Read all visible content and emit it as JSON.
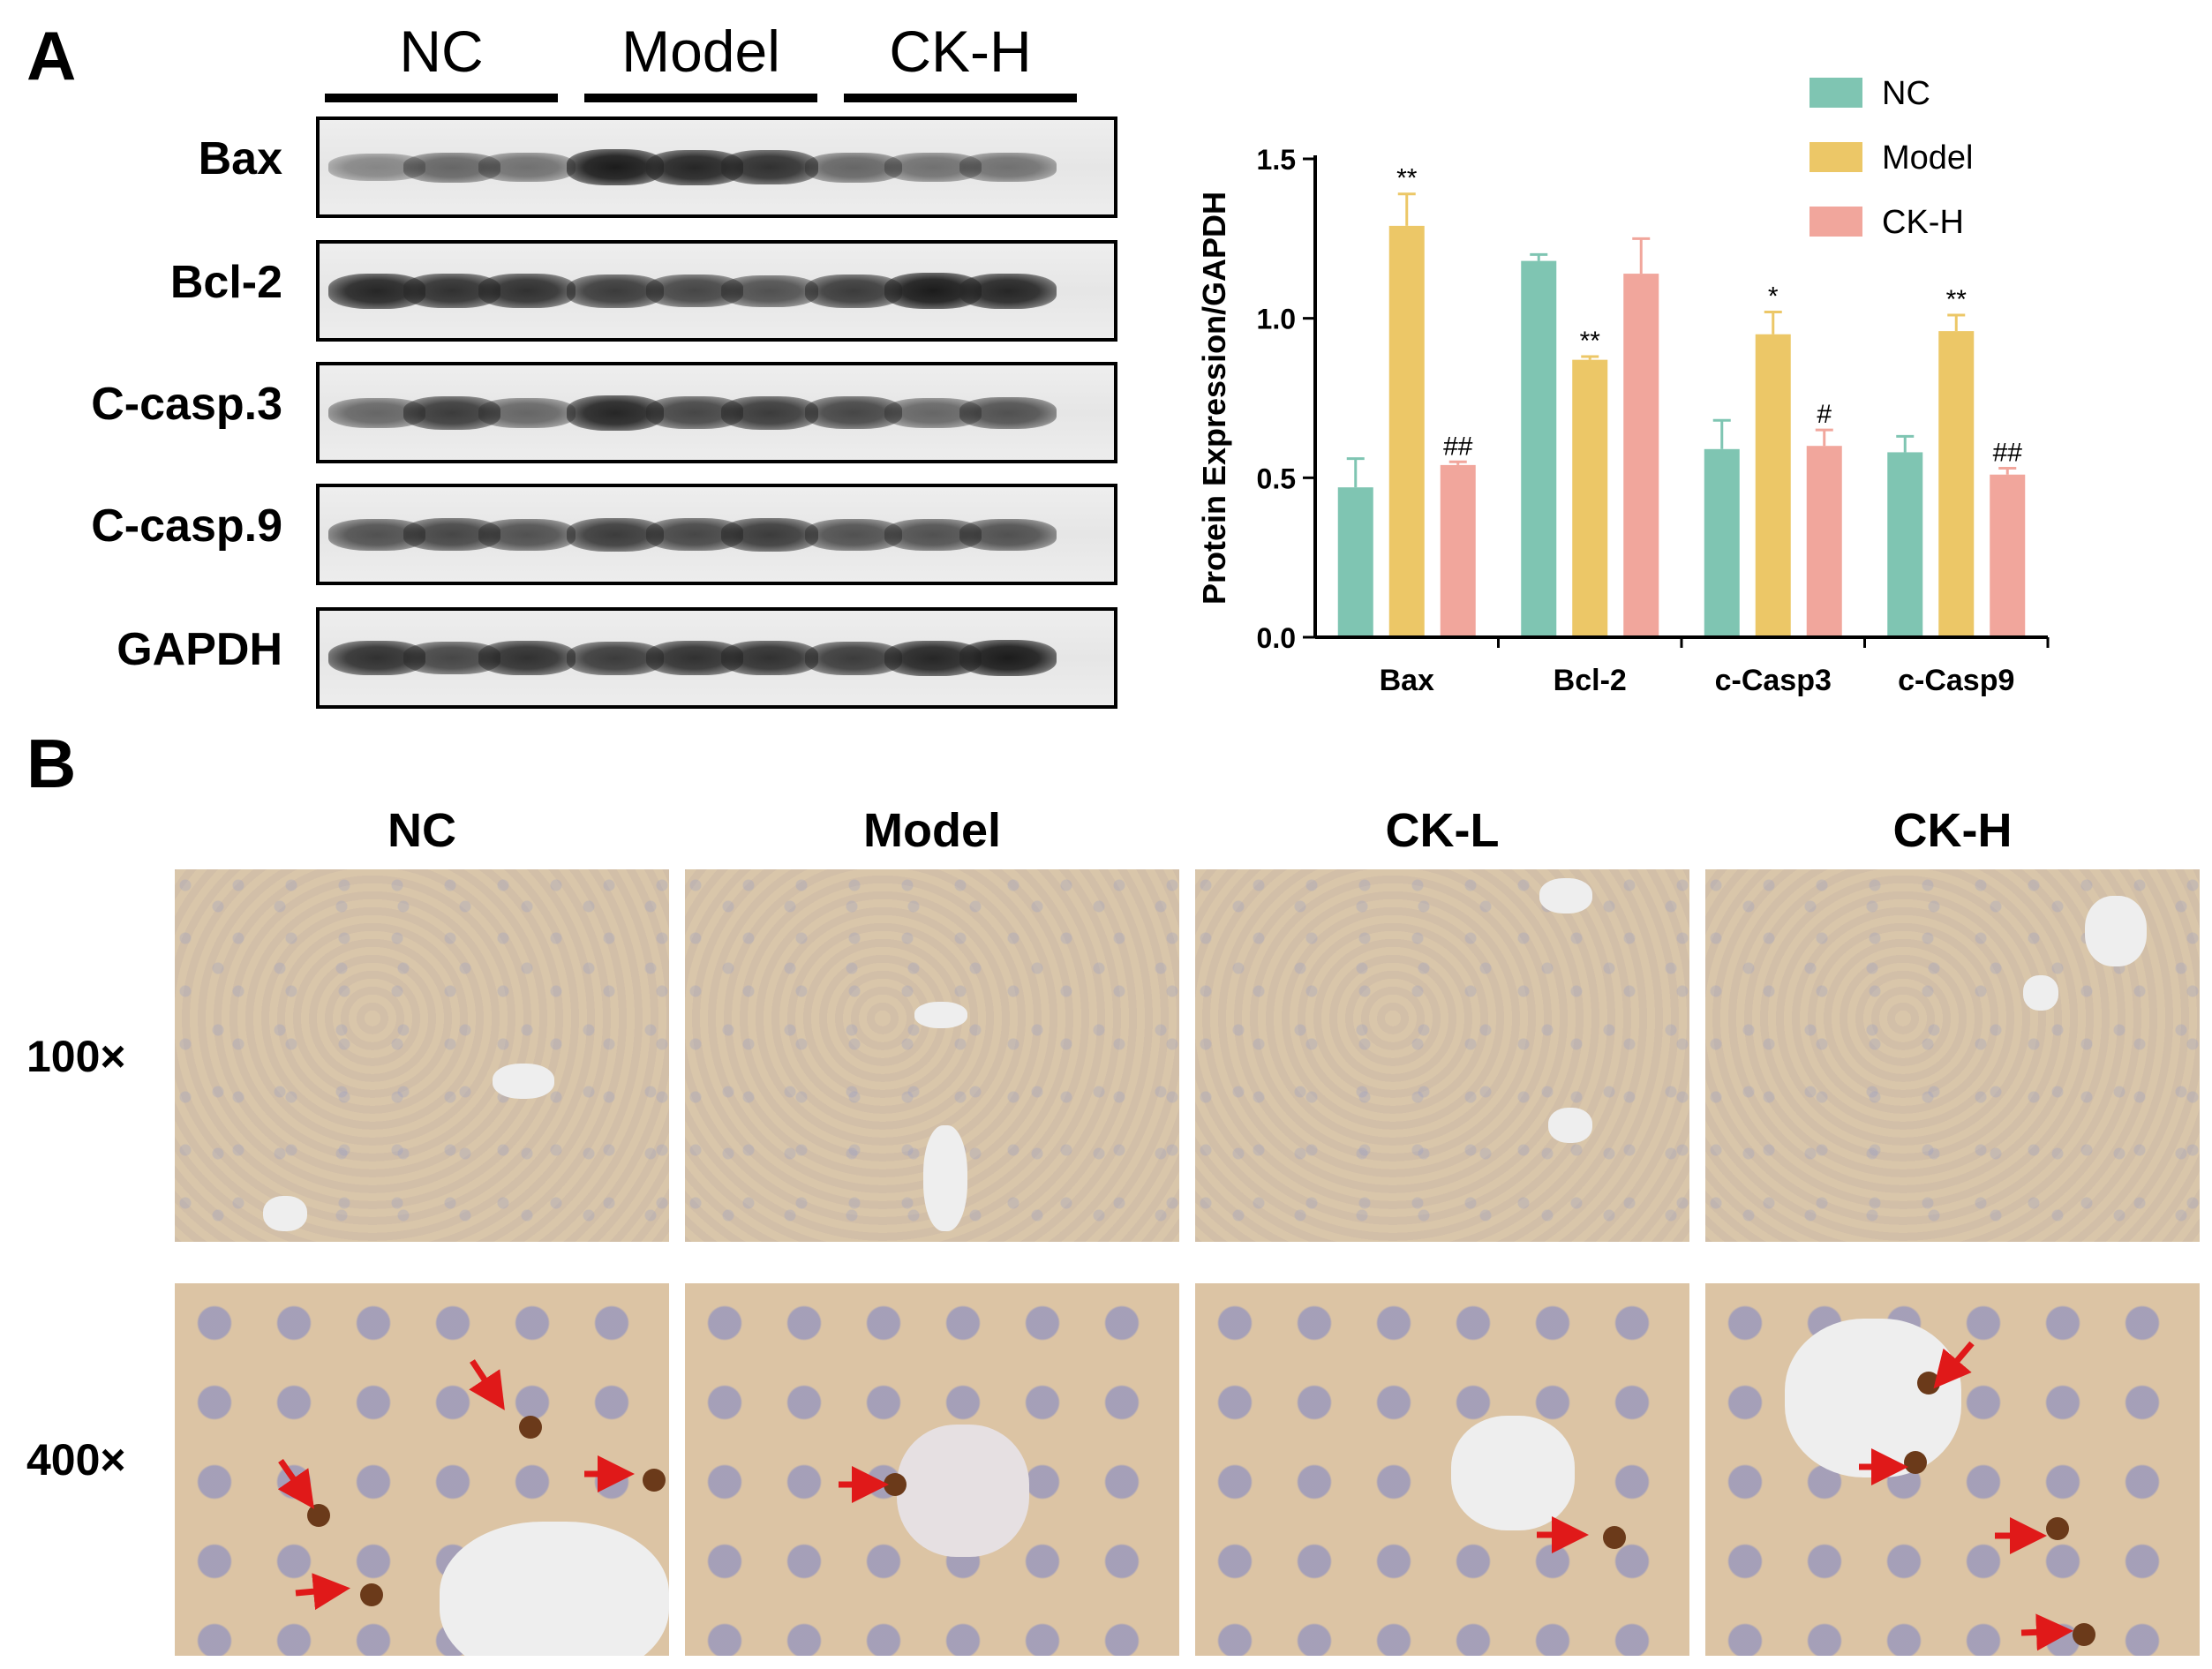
{
  "panel_a": {
    "letter": "A",
    "groups": [
      "NC",
      "Model",
      "CK-H"
    ],
    "blot_rows": [
      "Bax",
      "Bcl-2",
      "C-casp.3",
      "C-casp.9",
      "GAPDH"
    ]
  },
  "panel_b": {
    "letter": "B",
    "columns": [
      "NC",
      "Model",
      "CK-L",
      "CK-H"
    ],
    "rows": [
      "100×",
      "400×"
    ]
  },
  "chart_data": {
    "type": "bar",
    "categories": [
      "Bax",
      "Bcl-2",
      "c-Casp3",
      "c-Casp9"
    ],
    "series": [
      {
        "name": "NC",
        "color": "#7fc5b2",
        "values": [
          0.47,
          1.18,
          0.59,
          0.58
        ],
        "errors": [
          0.09,
          0.02,
          0.09,
          0.05
        ],
        "annotations": [
          "",
          "",
          "",
          ""
        ]
      },
      {
        "name": "Model",
        "color": "#ecc767",
        "values": [
          1.29,
          0.87,
          0.95,
          0.96
        ],
        "errors": [
          0.1,
          0.01,
          0.07,
          0.05
        ],
        "annotations": [
          "**",
          "**",
          "*",
          "**"
        ]
      },
      {
        "name": "CK-H",
        "color": "#f1a69c",
        "values": [
          0.54,
          1.14,
          0.6,
          0.51
        ],
        "errors": [
          0.01,
          0.11,
          0.05,
          0.02
        ],
        "annotations": [
          "##",
          "",
          "#",
          "##"
        ]
      }
    ],
    "ylabel": "Protein Expression/GAPDH",
    "xlabel": "",
    "ylim": [
      0,
      1.5
    ],
    "yticks": [
      "0.0",
      "0.5",
      "1.0",
      "1.5"
    ],
    "legend": "top-right"
  }
}
